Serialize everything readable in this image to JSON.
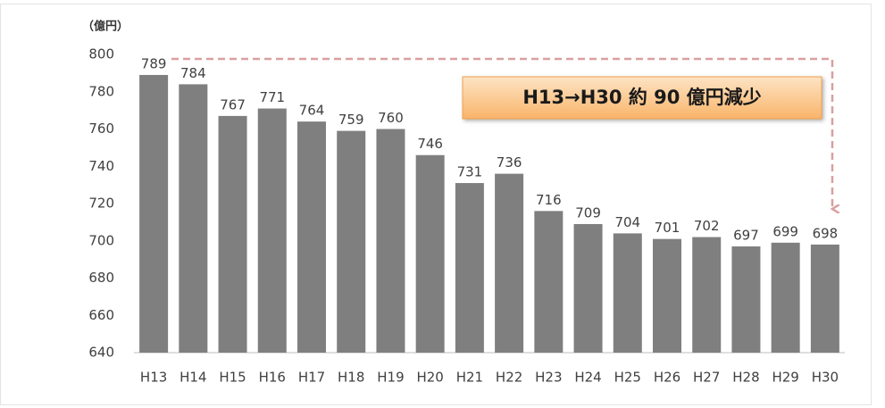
{
  "chart_data": {
    "type": "bar",
    "unit_label": "（億円）",
    "annotation": "H13→H30  約 90 億円減少",
    "categories": [
      "H13",
      "H14",
      "H15",
      "H16",
      "H17",
      "H18",
      "H19",
      "H20",
      "H21",
      "H22",
      "H23",
      "H24",
      "H25",
      "H26",
      "H27",
      "H28",
      "H29",
      "H30"
    ],
    "values": [
      789,
      784,
      767,
      771,
      764,
      759,
      760,
      746,
      731,
      736,
      716,
      709,
      704,
      701,
      702,
      697,
      699,
      698
    ],
    "color": "#7f7f7f",
    "ylim": [
      640,
      800
    ],
    "yticks": [
      640,
      660,
      680,
      700,
      720,
      740,
      760,
      780,
      800
    ],
    "grid": false
  }
}
